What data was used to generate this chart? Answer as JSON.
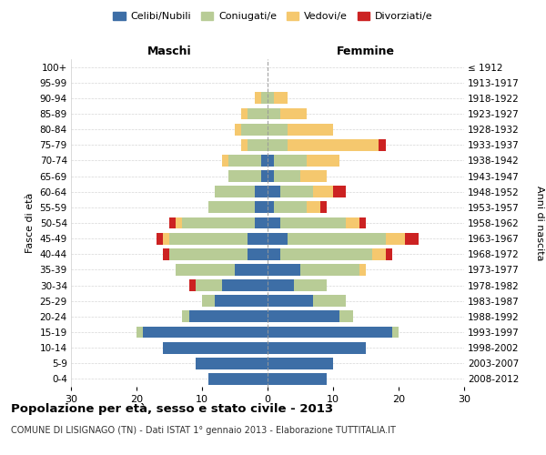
{
  "age_groups": [
    "0-4",
    "5-9",
    "10-14",
    "15-19",
    "20-24",
    "25-29",
    "30-34",
    "35-39",
    "40-44",
    "45-49",
    "50-54",
    "55-59",
    "60-64",
    "65-69",
    "70-74",
    "75-79",
    "80-84",
    "85-89",
    "90-94",
    "95-99",
    "100+"
  ],
  "birth_years": [
    "2008-2012",
    "2003-2007",
    "1998-2002",
    "1993-1997",
    "1988-1992",
    "1983-1987",
    "1978-1982",
    "1973-1977",
    "1968-1972",
    "1963-1967",
    "1958-1962",
    "1953-1957",
    "1948-1952",
    "1943-1947",
    "1938-1942",
    "1933-1937",
    "1928-1932",
    "1923-1927",
    "1918-1922",
    "1913-1917",
    "≤ 1912"
  ],
  "maschi": {
    "celibi": [
      9,
      11,
      16,
      19,
      12,
      8,
      7,
      5,
      3,
      3,
      2,
      2,
      2,
      1,
      1,
      0,
      0,
      0,
      0,
      0,
      0
    ],
    "coniugati": [
      0,
      0,
      0,
      1,
      1,
      2,
      4,
      9,
      12,
      12,
      11,
      7,
      6,
      5,
      5,
      3,
      4,
      3,
      1,
      0,
      0
    ],
    "vedovi": [
      0,
      0,
      0,
      0,
      0,
      0,
      0,
      0,
      0,
      1,
      1,
      0,
      0,
      0,
      1,
      1,
      1,
      1,
      1,
      0,
      0
    ],
    "divorziati": [
      0,
      0,
      0,
      0,
      0,
      0,
      1,
      0,
      1,
      1,
      1,
      0,
      0,
      0,
      0,
      0,
      0,
      0,
      0,
      0,
      0
    ]
  },
  "femmine": {
    "nubili": [
      9,
      10,
      15,
      19,
      11,
      7,
      4,
      5,
      2,
      3,
      2,
      1,
      2,
      1,
      1,
      0,
      0,
      0,
      0,
      0,
      0
    ],
    "coniugate": [
      0,
      0,
      0,
      1,
      2,
      5,
      5,
      9,
      14,
      15,
      10,
      5,
      5,
      4,
      5,
      3,
      3,
      2,
      1,
      0,
      0
    ],
    "vedove": [
      0,
      0,
      0,
      0,
      0,
      0,
      0,
      1,
      2,
      3,
      2,
      2,
      3,
      4,
      5,
      14,
      7,
      4,
      2,
      0,
      0
    ],
    "divorziate": [
      0,
      0,
      0,
      0,
      0,
      0,
      0,
      0,
      1,
      2,
      1,
      1,
      2,
      0,
      0,
      1,
      0,
      0,
      0,
      0,
      0
    ]
  },
  "colors": {
    "celibi": "#3d6ea6",
    "coniugati": "#b8cc96",
    "vedovi": "#f5c86e",
    "divorziati": "#cc2222"
  },
  "xlim": [
    -30,
    30
  ],
  "xticks": [
    -30,
    -20,
    -10,
    0,
    10,
    20,
    30
  ],
  "xticklabels": [
    "30",
    "20",
    "10",
    "0",
    "10",
    "20",
    "30"
  ],
  "title": "Popolazione per età, sesso e stato civile - 2013",
  "subtitle": "COMUNE DI LISIGNAGO (TN) - Dati ISTAT 1° gennaio 2013 - Elaborazione TUTTITALIA.IT",
  "ylabel_left": "Fasce di età",
  "ylabel_right": "Anni di nascita",
  "maschi_label": "Maschi",
  "femmine_label": "Femmine",
  "legend_labels": [
    "Celibi/Nubili",
    "Coniugati/e",
    "Vedovi/e",
    "Divorziati/e"
  ],
  "background_color": "#ffffff",
  "grid_color": "#cccccc"
}
